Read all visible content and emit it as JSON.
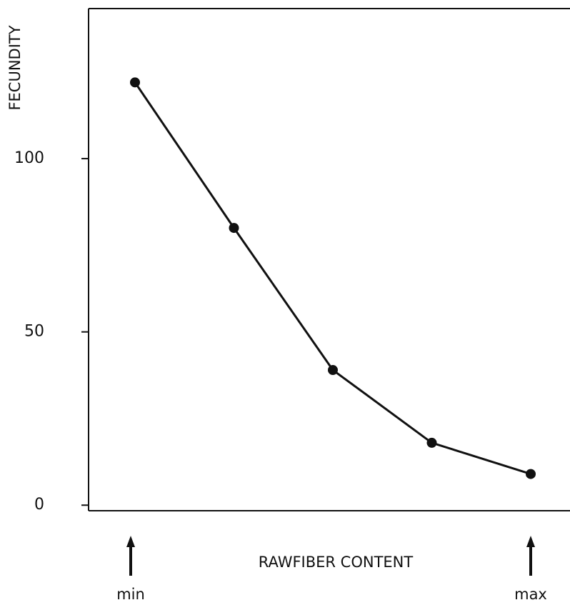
{
  "chart_data": {
    "type": "line",
    "y_label": "FECUNDITY",
    "x_label": "RAWFIBER CONTENT",
    "categories": [
      "min",
      null,
      null,
      null,
      "max"
    ],
    "values": [
      122,
      80,
      39,
      18,
      9
    ],
    "color": "#111111",
    "ylim": [
      -1.6,
      143.3
    ],
    "yticks": [
      0,
      50,
      100
    ]
  }
}
